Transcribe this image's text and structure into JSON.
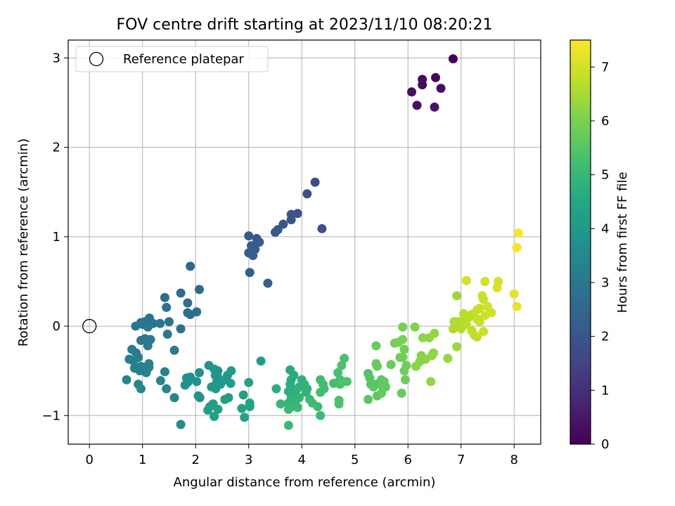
{
  "chart_data": {
    "type": "scatter",
    "title": "FOV centre drift starting at 2023/11/10 08:20:21",
    "xlabel": "Angular distance from reference (arcmin)",
    "ylabel": "Rotation from reference (arcmin)",
    "xlim": [
      -0.4,
      8.5
    ],
    "ylim": [
      -1.32,
      3.2
    ],
    "xticks": [
      0,
      1,
      2,
      3,
      4,
      5,
      6,
      7,
      8
    ],
    "yticks": [
      -1,
      0,
      1,
      2,
      3
    ],
    "ytick_labels": [
      "−1",
      "0",
      "1",
      "2",
      "3"
    ],
    "grid": true,
    "legend": {
      "placement": "top-left",
      "label": "Reference platepar"
    },
    "reference_point": {
      "x": 0,
      "y": 0
    },
    "colorbar": {
      "label": "Hours from first FF file",
      "range": [
        0,
        7.5
      ],
      "ticks": [
        0,
        1,
        2,
        3,
        4,
        5,
        6,
        7
      ],
      "colormap": "viridis"
    },
    "points": [
      [
        6.85,
        2.99,
        0.05
      ],
      [
        6.52,
        2.78,
        0.1
      ],
      [
        6.27,
        2.76,
        0.15
      ],
      [
        6.27,
        2.7,
        0.2
      ],
      [
        6.62,
        2.66,
        0.25
      ],
      [
        6.07,
        2.62,
        0.3
      ],
      [
        6.17,
        2.47,
        0.35
      ],
      [
        6.5,
        2.45,
        0.4
      ],
      [
        4.25,
        1.61,
        1.8
      ],
      [
        4.1,
        1.48,
        1.85
      ],
      [
        3.92,
        1.26,
        1.9
      ],
      [
        3.8,
        1.25,
        1.93
      ],
      [
        3.8,
        1.19,
        1.96
      ],
      [
        3.65,
        1.14,
        2.0
      ],
      [
        3.55,
        1.08,
        2.02
      ],
      [
        3.5,
        1.05,
        2.05
      ],
      [
        4.38,
        1.09,
        1.88
      ],
      [
        3.0,
        1.01,
        2.1
      ],
      [
        3.15,
        0.98,
        2.12
      ],
      [
        3.2,
        0.94,
        2.14
      ],
      [
        3.05,
        0.9,
        2.16
      ],
      [
        3.12,
        0.86,
        2.18
      ],
      [
        3.0,
        0.82,
        2.2
      ],
      [
        3.08,
        0.79,
        2.22
      ],
      [
        3.02,
        0.6,
        2.24
      ],
      [
        3.36,
        0.48,
        2.26
      ],
      [
        1.9,
        0.67,
        2.5
      ],
      [
        2.07,
        0.41,
        2.55
      ],
      [
        1.72,
        0.37,
        2.6
      ],
      [
        1.42,
        0.32,
        2.65
      ],
      [
        1.85,
        0.26,
        2.7
      ],
      [
        1.45,
        0.21,
        2.75
      ],
      [
        2.02,
        0.16,
        2.72
      ],
      [
        1.85,
        0.15,
        2.68
      ],
      [
        1.9,
        0.13,
        2.66
      ],
      [
        1.13,
        0.09,
        2.8
      ],
      [
        1.05,
        0.05,
        2.82
      ],
      [
        0.97,
        0.04,
        2.84
      ],
      [
        1.2,
        0.03,
        2.86
      ],
      [
        1.5,
        0.05,
        2.88
      ],
      [
        1.33,
        0.03,
        2.9
      ],
      [
        1.0,
        0.02,
        2.92
      ],
      [
        0.87,
        0.0,
        2.94
      ],
      [
        1.1,
        -0.01,
        2.96
      ],
      [
        1.72,
        -0.03,
        2.78
      ],
      [
        1.47,
        -0.09,
        2.98
      ],
      [
        1.05,
        -0.14,
        3.0
      ],
      [
        0.97,
        -0.16,
        3.02
      ],
      [
        1.15,
        -0.15,
        3.04
      ],
      [
        1.1,
        -0.22,
        3.06
      ],
      [
        1.6,
        -0.27,
        3.08
      ],
      [
        0.8,
        -0.26,
        3.1
      ],
      [
        0.88,
        -0.3,
        3.12
      ],
      [
        0.92,
        -0.35,
        3.14
      ],
      [
        0.75,
        -0.37,
        3.16
      ],
      [
        0.83,
        -0.39,
        3.18
      ],
      [
        1.12,
        -0.42,
        3.2
      ],
      [
        0.97,
        -0.45,
        3.22
      ],
      [
        1.12,
        -0.46,
        3.24
      ],
      [
        0.85,
        -0.47,
        3.26
      ],
      [
        1.05,
        -0.48,
        3.28
      ],
      [
        0.95,
        -0.5,
        3.3
      ],
      [
        1.07,
        -0.52,
        3.32
      ],
      [
        1.42,
        -0.51,
        3.34
      ],
      [
        0.7,
        -0.6,
        3.36
      ],
      [
        1.34,
        -0.61,
        3.38
      ],
      [
        0.92,
        -0.65,
        3.4
      ],
      [
        1.45,
        -0.7,
        3.42
      ],
      [
        0.97,
        -0.7,
        3.44
      ],
      [
        1.6,
        -0.8,
        3.46
      ],
      [
        1.72,
        -1.1,
        3.6
      ],
      [
        2.07,
        -0.52,
        3.7
      ],
      [
        1.9,
        -0.57,
        3.72
      ],
      [
        1.83,
        -0.58,
        3.74
      ],
      [
        2.02,
        -0.62,
        3.76
      ],
      [
        1.8,
        -0.66,
        3.78
      ],
      [
        1.85,
        -0.63,
        3.8
      ],
      [
        2.05,
        -0.78,
        3.82
      ],
      [
        2.08,
        -0.8,
        3.84
      ],
      [
        2.25,
        -0.44,
        3.86
      ],
      [
        2.35,
        -0.48,
        3.88
      ],
      [
        2.42,
        -0.5,
        3.9
      ],
      [
        2.37,
        -0.55,
        3.92
      ],
      [
        2.43,
        -0.58,
        3.94
      ],
      [
        2.4,
        -0.62,
        3.96
      ],
      [
        2.47,
        -0.65,
        3.98
      ],
      [
        2.3,
        -0.68,
        4.0
      ],
      [
        2.38,
        -0.7,
        4.02
      ],
      [
        2.6,
        -0.55,
        4.04
      ],
      [
        2.67,
        -0.5,
        4.06
      ],
      [
        2.58,
        -0.6,
        4.08
      ],
      [
        2.66,
        -0.64,
        4.1
      ],
      [
        3.23,
        -0.39,
        4.12
      ],
      [
        2.62,
        -0.8,
        4.14
      ],
      [
        2.55,
        -0.82,
        4.16
      ],
      [
        2.33,
        -0.87,
        4.18
      ],
      [
        2.27,
        -0.9,
        4.2
      ],
      [
        2.23,
        -0.94,
        4.22
      ],
      [
        2.42,
        -0.93,
        4.24
      ],
      [
        2.35,
        -1.01,
        4.26
      ],
      [
        2.9,
        -0.77,
        4.28
      ],
      [
        2.87,
        -0.92,
        4.3
      ],
      [
        2.92,
        -1.02,
        4.32
      ],
      [
        3.0,
        -0.63,
        4.34
      ],
      [
        3.02,
        -0.9,
        4.36
      ],
      [
        3.02,
        -0.86,
        4.38
      ],
      [
        3.78,
        -0.49,
        4.6
      ],
      [
        3.85,
        -0.55,
        4.62
      ],
      [
        3.8,
        -0.6,
        4.64
      ],
      [
        3.78,
        -0.65,
        4.66
      ],
      [
        3.52,
        -0.7,
        4.68
      ],
      [
        3.75,
        -0.73,
        4.7
      ],
      [
        3.9,
        -0.71,
        4.72
      ],
      [
        3.85,
        -0.75,
        4.74
      ],
      [
        3.8,
        -0.8,
        4.76
      ],
      [
        4.0,
        -0.6,
        4.78
      ],
      [
        4.05,
        -0.65,
        4.8
      ],
      [
        3.95,
        -0.68,
        4.82
      ],
      [
        4.1,
        -0.7,
        4.84
      ],
      [
        4.08,
        -0.74,
        4.86
      ],
      [
        3.95,
        -0.8,
        4.88
      ],
      [
        3.87,
        -0.83,
        4.9
      ],
      [
        3.75,
        -0.86,
        4.92
      ],
      [
        3.88,
        -0.87,
        4.94
      ],
      [
        3.6,
        -0.87,
        4.96
      ],
      [
        3.75,
        -0.93,
        4.98
      ],
      [
        3.82,
        -0.9,
        5.0
      ],
      [
        3.92,
        -0.91,
        5.02
      ],
      [
        3.75,
        -1.11,
        5.04
      ],
      [
        4.15,
        -0.82,
        5.06
      ],
      [
        4.2,
        -0.86,
        5.08
      ],
      [
        4.3,
        -0.9,
        5.1
      ],
      [
        4.35,
        -1.0,
        5.12
      ],
      [
        4.35,
        -0.6,
        5.14
      ],
      [
        4.4,
        -0.65,
        5.16
      ],
      [
        4.42,
        -0.7,
        5.18
      ],
      [
        4.35,
        -0.74,
        5.2
      ],
      [
        4.6,
        -0.64,
        5.22
      ],
      [
        4.72,
        -0.6,
        5.24
      ],
      [
        4.68,
        -0.52,
        5.26
      ],
      [
        4.72,
        -0.65,
        5.28
      ],
      [
        4.8,
        -0.36,
        5.3
      ],
      [
        4.75,
        -0.44,
        5.32
      ],
      [
        4.7,
        -0.83,
        5.34
      ],
      [
        4.7,
        -0.87,
        5.36
      ],
      [
        4.85,
        -0.62,
        5.38
      ],
      [
        4.77,
        -0.62,
        5.4
      ],
      [
        5.25,
        -0.53,
        5.45
      ],
      [
        5.28,
        -0.58,
        5.47
      ],
      [
        5.3,
        -0.65,
        5.49
      ],
      [
        5.4,
        -0.65,
        5.51
      ],
      [
        5.35,
        -0.68,
        5.53
      ],
      [
        5.25,
        -0.82,
        5.55
      ],
      [
        5.42,
        -0.78,
        5.57
      ],
      [
        5.5,
        -0.6,
        5.59
      ],
      [
        5.55,
        -0.62,
        5.61
      ],
      [
        5.5,
        -0.66,
        5.63
      ],
      [
        5.58,
        -0.68,
        5.65
      ],
      [
        5.5,
        -0.75,
        5.67
      ],
      [
        5.4,
        -0.42,
        5.69
      ],
      [
        5.42,
        -0.45,
        5.71
      ],
      [
        5.4,
        -0.22,
        5.73
      ],
      [
        5.68,
        -0.43,
        5.75
      ],
      [
        5.88,
        -0.75,
        5.77
      ],
      [
        5.95,
        -0.6,
        5.79
      ],
      [
        5.85,
        -0.35,
        5.81
      ],
      [
        5.93,
        -0.5,
        5.83
      ],
      [
        5.97,
        -0.44,
        5.85
      ],
      [
        5.9,
        -0.35,
        5.87
      ],
      [
        5.93,
        -0.26,
        5.89
      ],
      [
        5.75,
        -0.19,
        5.91
      ],
      [
        5.82,
        -0.18,
        5.93
      ],
      [
        5.9,
        -0.15,
        5.95
      ],
      [
        5.9,
        -0.01,
        5.97
      ],
      [
        6.13,
        -0.01,
        6.1
      ],
      [
        6.15,
        -0.45,
        6.12
      ],
      [
        6.22,
        -0.4,
        6.14
      ],
      [
        6.25,
        -0.33,
        6.16
      ],
      [
        6.33,
        -0.37,
        6.18
      ],
      [
        6.28,
        -0.13,
        6.2
      ],
      [
        6.45,
        -0.33,
        6.22
      ],
      [
        6.4,
        -0.13,
        6.24
      ],
      [
        6.48,
        -0.3,
        6.26
      ],
      [
        6.5,
        -0.08,
        6.28
      ],
      [
        6.43,
        -0.62,
        6.3
      ],
      [
        6.75,
        -0.36,
        6.32
      ],
      [
        6.92,
        0.34,
        6.34
      ],
      [
        6.92,
        -0.23,
        6.36
      ],
      [
        6.87,
        0.05,
        6.55
      ],
      [
        6.9,
        0.0,
        6.57
      ],
      [
        6.85,
        -0.03,
        6.59
      ],
      [
        6.95,
        0.05,
        6.61
      ],
      [
        7.0,
        -0.03,
        6.63
      ],
      [
        7.05,
        0.07,
        6.65
      ],
      [
        7.1,
        0.02,
        6.67
      ],
      [
        7.05,
        0.14,
        6.69
      ],
      [
        7.15,
        0.1,
        6.71
      ],
      [
        7.2,
        0.13,
        6.73
      ],
      [
        7.2,
        -0.05,
        6.75
      ],
      [
        7.25,
        -0.1,
        6.77
      ],
      [
        7.3,
        -0.12,
        6.79
      ],
      [
        7.3,
        0.08,
        6.81
      ],
      [
        7.35,
        0.05,
        6.83
      ],
      [
        7.3,
        0.18,
        6.85
      ],
      [
        7.35,
        0.2,
        6.87
      ],
      [
        7.42,
        0.3,
        6.89
      ],
      [
        7.4,
        0.34,
        6.91
      ],
      [
        7.42,
        -0.06,
        6.93
      ],
      [
        7.45,
        0.12,
        6.95
      ],
      [
        7.5,
        0.22,
        6.97
      ],
      [
        7.57,
        0.15,
        6.99
      ],
      [
        7.45,
        0.5,
        7.01
      ],
      [
        7.1,
        0.51,
        7.03
      ],
      [
        7.7,
        0.5,
        7.05
      ],
      [
        7.68,
        0.43,
        7.07
      ],
      [
        8.0,
        0.36,
        7.2
      ],
      [
        8.05,
        0.22,
        7.25
      ],
      [
        8.05,
        0.88,
        7.4
      ],
      [
        8.08,
        1.04,
        7.45
      ]
    ]
  }
}
